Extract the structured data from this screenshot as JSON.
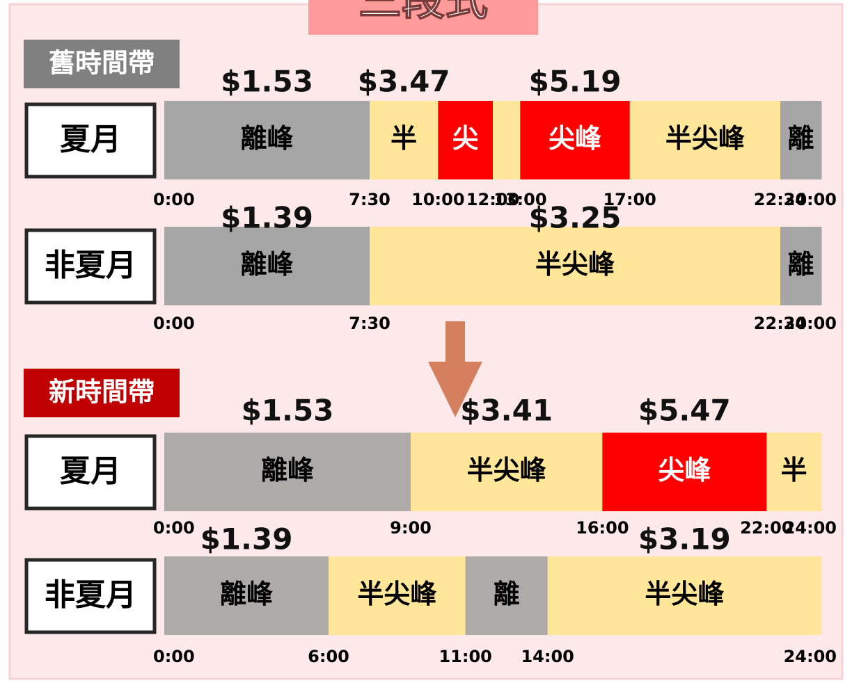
{
  "title": "三段式",
  "sections": [
    {
      "title": "舊時間帶",
      "color": "#808080",
      "rows": [
        {
          "label": "夏月",
          "ticks": [
            "0:00",
            "7:30",
            "10:00",
            "12:00",
            "13:00",
            "17:00",
            "22:30",
            "24:00"
          ],
          "segments": [
            {
              "label": "離峰",
              "price": "$1.53",
              "color": "#a6a6a6",
              "text_color": "#000000"
            },
            {
              "label": "半",
              "price": "$3.47",
              "color": "#ffe699",
              "text_color": "#000000"
            },
            {
              "label": "尖",
              "color": "#ff0000",
              "text_color": "#ffffff"
            },
            {
              "label": null,
              "color": "#ffe699",
              "text_color": "#000000"
            },
            {
              "label": "尖峰",
              "price": "$5.19",
              "color": "#ff0000",
              "text_color": "#ffffff"
            },
            {
              "label": "半尖峰",
              "color": "#ffe699",
              "text_color": "#000000"
            },
            {
              "label": "離",
              "color": "#a6a6a6",
              "text_color": "#000000"
            }
          ]
        },
        {
          "label": "非夏月",
          "ticks": [
            "0:00",
            "7:30",
            "22:30",
            "24:00"
          ],
          "segments": [
            {
              "label": "離峰",
              "price": "$1.39",
              "color": "#a6a6a6",
              "text_color": "#000000"
            },
            {
              "label": "半尖峰",
              "price": "$3.25",
              "color": "#ffe699",
              "text_color": "#000000"
            },
            {
              "label": "離",
              "color": "#a6a6a6",
              "text_color": "#000000"
            }
          ]
        }
      ]
    },
    {
      "title": "新時間帶",
      "color": "#c00000",
      "rows": [
        {
          "label": "夏月",
          "ticks": [
            "0:00",
            "9:00",
            "16:00",
            "22:00",
            "24:00"
          ],
          "segments": [
            {
              "label": "離峰",
              "price": "$1.53",
              "color": "#aeaaaa",
              "text_color": "#000000"
            },
            {
              "label": "半尖峰",
              "price": "$3.41",
              "color": "#ffe699",
              "text_color": "#000000"
            },
            {
              "label": "尖峰",
              "price": "$5.47",
              "color": "#ff0000",
              "text_color": "#ffffff"
            },
            {
              "label": "半",
              "color": "#ffe699",
              "text_color": "#000000"
            }
          ]
        },
        {
          "label": "非夏月",
          "ticks": [
            "0:00",
            "6:00",
            "11:00",
            "14:00",
            "24:00"
          ],
          "segments": [
            {
              "label": "離峰",
              "price": "$1.39",
              "color": "#aeaaaa",
              "text_color": "#000000"
            },
            {
              "label": "半尖峰",
              "color": "#ffe699",
              "text_color": "#000000"
            },
            {
              "label": "離",
              "color": "#aeaaaa",
              "text_color": "#000000"
            },
            {
              "label": "半尖峰",
              "price": "$3.19",
              "color": "#ffe699",
              "text_color": "#000000"
            }
          ]
        }
      ]
    }
  ]
}
